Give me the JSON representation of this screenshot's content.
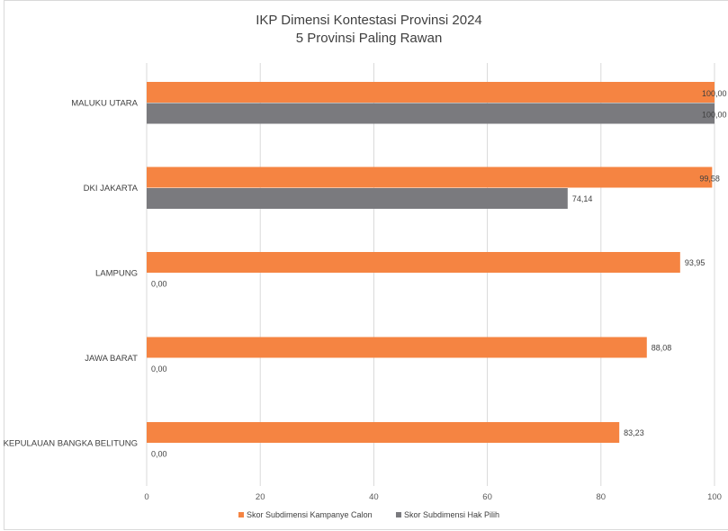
{
  "chart_data": {
    "type": "bar",
    "orientation": "horizontal",
    "title_line1": "IKP Dimensi Kontestasi Provinsi 2024",
    "title_line2": "5 Provinsi Paling Rawan",
    "categories": [
      "MALUKU UTARA",
      "DKI JAKARTA",
      "LAMPUNG",
      "JAWA BARAT",
      "KEPULAUAN BANGKA BELITUNG"
    ],
    "series": [
      {
        "name": "Skor Subdimensi Kampanye Calon",
        "color": "#f58442",
        "values": [
          100.0,
          99.58,
          93.95,
          88.08,
          83.23
        ],
        "labels": [
          "100,00",
          "99,58",
          "93,95",
          "88,08",
          "83,23"
        ]
      },
      {
        "name": "Skor Subdimensi Hak Pilih",
        "color": "#7a7a7e",
        "values": [
          100.0,
          74.14,
          0.0,
          0.0,
          0.0
        ],
        "labels": [
          "100,00",
          "74,14",
          "0,00",
          "0,00",
          "0,00"
        ]
      }
    ],
    "xlim": [
      0,
      100
    ],
    "xticks": [
      "0",
      "20",
      "40",
      "60",
      "80",
      "100"
    ],
    "grid": "vertical",
    "legend_position": "bottom"
  }
}
